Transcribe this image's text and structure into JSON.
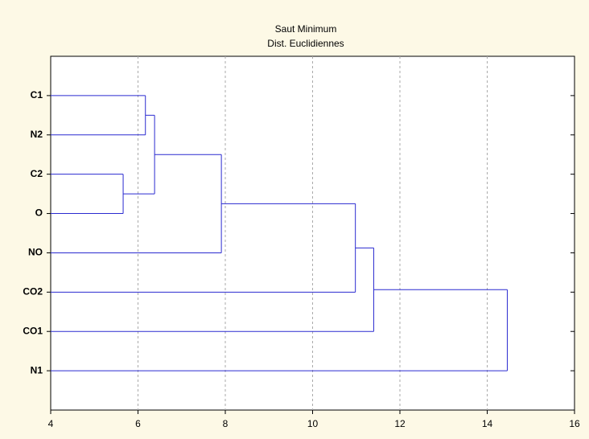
{
  "chart_data": {
    "type": "dendrogram",
    "title": "Saut Minimum",
    "subtitle": "Dist. Euclidiennes",
    "leaves": [
      "C1",
      "N2",
      "C2",
      "O",
      "NO",
      "CO2",
      "CO1",
      "N1"
    ],
    "merges": [
      {
        "children": [
          0,
          1
        ],
        "height": 6.17
      },
      {
        "children": [
          2,
          3
        ],
        "height": 5.66
      },
      {
        "children": [
          8,
          9
        ],
        "height": 6.38
      },
      {
        "children": [
          10,
          4
        ],
        "height": 7.91
      },
      {
        "children": [
          11,
          5
        ],
        "height": 10.98
      },
      {
        "children": [
          12,
          6
        ],
        "height": 11.4
      },
      {
        "children": [
          13,
          7
        ],
        "height": 14.46
      }
    ],
    "color": "#2a2ad0",
    "xlim": [
      4,
      16
    ],
    "xticks": [
      4,
      6,
      8,
      10,
      12,
      14,
      16
    ],
    "grid": true
  }
}
